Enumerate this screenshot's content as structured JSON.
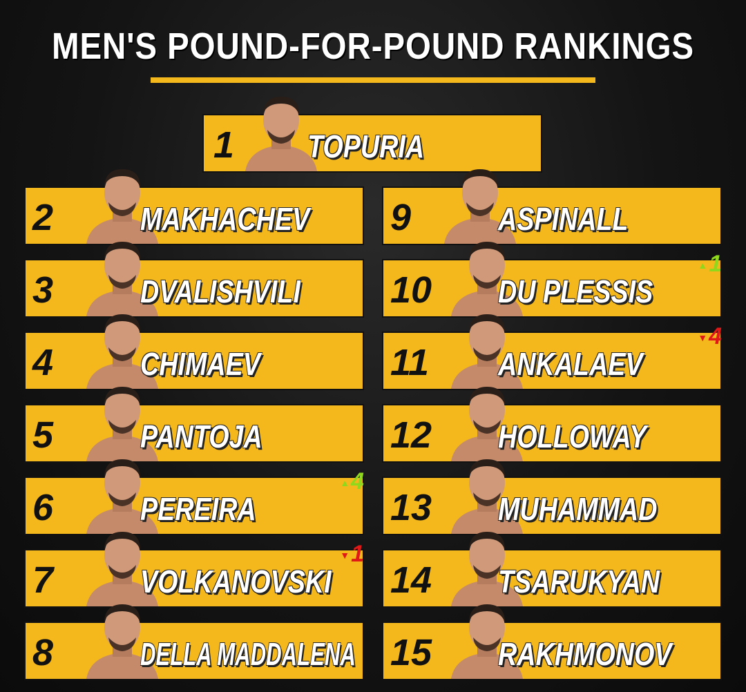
{
  "header": {
    "title": "MEN'S POUND-FOR-POUND RANKINGS"
  },
  "rankings": [
    {
      "rank": 1,
      "name": "TOPURIA"
    },
    {
      "rank": 2,
      "name": "MAKHACHEV"
    },
    {
      "rank": 3,
      "name": "DVALISHVILI"
    },
    {
      "rank": 4,
      "name": "CHIMAEV"
    },
    {
      "rank": 5,
      "name": "PANTOJA"
    },
    {
      "rank": 6,
      "name": "PEREIRA",
      "change": {
        "direction": "up",
        "amount": 4
      }
    },
    {
      "rank": 7,
      "name": "VOLKANOVSKI",
      "change": {
        "direction": "down",
        "amount": 1
      }
    },
    {
      "rank": 8,
      "name": "DELLA MADDALENA"
    },
    {
      "rank": 9,
      "name": "ASPINALL"
    },
    {
      "rank": 10,
      "name": "DU PLESSIS",
      "change": {
        "direction": "up",
        "amount": 1
      }
    },
    {
      "rank": 11,
      "name": "ANKALAEV",
      "change": {
        "direction": "down",
        "amount": 4
      }
    },
    {
      "rank": 12,
      "name": "HOLLOWAY"
    },
    {
      "rank": 13,
      "name": "MUHAMMAD"
    },
    {
      "rank": 14,
      "name": "TSARUKYAN"
    },
    {
      "rank": 15,
      "name": "RAKHMONOV"
    }
  ]
}
